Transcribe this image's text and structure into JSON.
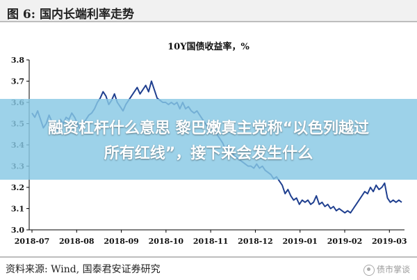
{
  "figure_header": "图 6:  国内长端利率走势",
  "source_text": "资料来源:  Wind,  国泰君安证券研究",
  "watermark_text": "债市掌谈",
  "overlay": {
    "line1": "融资杠杆什么意思 黎巴嫩真主党称“以色列越过",
    "line2": "所有红线”，接下来会发生什么"
  },
  "colors": {
    "series": "#1f3f8f",
    "axis": "#000000",
    "overlay": "#88c8e4"
  },
  "chart_data": {
    "type": "line",
    "title": "10Y国债收益率，%",
    "xlabel": "",
    "ylabel": "",
    "ylim": [
      3.0,
      3.8
    ],
    "yticks": [
      "3.8",
      "3.7",
      "3.6",
      "3.5",
      "3.4",
      "3.3",
      "3.2",
      "3.1",
      "3.0"
    ],
    "xticks": [
      "2018-07",
      "2018-08",
      "2018-09",
      "2018-10",
      "2018-11",
      "2018-12",
      "2019-01",
      "2019-02",
      "2019-03"
    ],
    "grid": false,
    "legend": "none",
    "series": [
      {
        "values": [
          3.55,
          3.53,
          3.56,
          3.52,
          3.48,
          3.5,
          3.54,
          3.51,
          3.49,
          3.47,
          3.52,
          3.5,
          3.53,
          3.52,
          3.55,
          3.53,
          3.5,
          3.47,
          3.5,
          3.52,
          3.54,
          3.55,
          3.57,
          3.6,
          3.62,
          3.65,
          3.63,
          3.59,
          3.61,
          3.64,
          3.6,
          3.58,
          3.56,
          3.59,
          3.61,
          3.63,
          3.65,
          3.67,
          3.64,
          3.66,
          3.68,
          3.65,
          3.7,
          3.66,
          3.62,
          3.61,
          3.6,
          3.6,
          3.59,
          3.6,
          3.59,
          3.6,
          3.57,
          3.6,
          3.57,
          3.58,
          3.56,
          3.55,
          3.56,
          3.54,
          3.52,
          3.5,
          3.48,
          3.5,
          3.46,
          3.45,
          3.43,
          3.41,
          3.38,
          3.4,
          3.37,
          3.35,
          3.34,
          3.33,
          3.32,
          3.31,
          3.3,
          3.3,
          3.29,
          3.31,
          3.29,
          3.3,
          3.28,
          3.27,
          3.26,
          3.24,
          3.25,
          3.23,
          3.21,
          3.17,
          3.19,
          3.16,
          3.14,
          3.15,
          3.12,
          3.14,
          3.13,
          3.14,
          3.12,
          3.13,
          3.16,
          3.12,
          3.13,
          3.11,
          3.12,
          3.1,
          3.11,
          3.09,
          3.1,
          3.09,
          3.08,
          3.09,
          3.08,
          3.1,
          3.12,
          3.14,
          3.16,
          3.18,
          3.17,
          3.2,
          3.18,
          3.21,
          3.19,
          3.2,
          3.22,
          3.15,
          3.13,
          3.14,
          3.13,
          3.14,
          3.13
        ]
      }
    ]
  }
}
